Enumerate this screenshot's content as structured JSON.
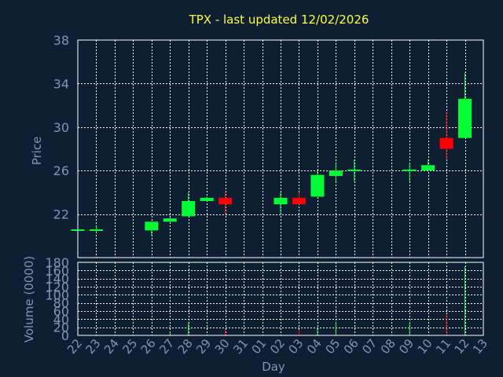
{
  "chart_data": [
    {
      "type": "candlestick",
      "title": "TPX - last updated 12/02/2026",
      "ylabel": "Price",
      "ylim": [
        18,
        38
      ],
      "yticks": [
        "22",
        "26",
        "30",
        "34",
        "38"
      ],
      "grid": true,
      "up_color": "#00ff33",
      "down_color": "#ff0000",
      "candles": [
        {
          "day": "22",
          "open": 20.5,
          "high": 20.6,
          "low": 20.5,
          "close": 20.6
        },
        {
          "day": "23",
          "open": 20.5,
          "high": 20.9,
          "low": 20.3,
          "close": 20.6
        },
        {
          "day": "26",
          "open": 20.5,
          "high": 21.3,
          "low": 20.0,
          "close": 21.3
        },
        {
          "day": "27",
          "open": 21.3,
          "high": 21.7,
          "low": 21.3,
          "close": 21.6
        },
        {
          "day": "28",
          "open": 21.8,
          "high": 24.0,
          "low": 21.8,
          "close": 23.2
        },
        {
          "day": "29",
          "open": 23.2,
          "high": 23.6,
          "low": 23.2,
          "close": 23.5
        },
        {
          "day": "30",
          "open": 23.5,
          "high": 24.0,
          "low": 22.0,
          "close": 22.9
        },
        {
          "day": "02",
          "open": 22.9,
          "high": 24.0,
          "low": 22.0,
          "close": 23.5
        },
        {
          "day": "03",
          "open": 23.5,
          "high": 24.0,
          "low": 22.9,
          "close": 22.9
        },
        {
          "day": "04",
          "open": 23.6,
          "high": 26.0,
          "low": 23.6,
          "close": 25.6
        },
        {
          "day": "05",
          "open": 25.5,
          "high": 26.8,
          "low": 25.0,
          "close": 26.0
        },
        {
          "day": "06",
          "open": 26.0,
          "high": 27.0,
          "low": 25.0,
          "close": 26.1
        },
        {
          "day": "09",
          "open": 26.0,
          "high": 26.7,
          "low": 25.0,
          "close": 26.1
        },
        {
          "day": "10",
          "open": 26.0,
          "high": 27.0,
          "low": 26.0,
          "close": 26.5
        },
        {
          "day": "11",
          "open": 29.0,
          "high": 31.4,
          "low": 27.0,
          "close": 28.0
        },
        {
          "day": "12",
          "open": 29.0,
          "high": 35.0,
          "low": 29.0,
          "close": 32.6
        }
      ]
    },
    {
      "type": "bar",
      "xlabel": "Day",
      "ylabel": "Volume (0000)",
      "ylim": [
        0,
        180
      ],
      "yticks": [
        "0",
        "20",
        "40",
        "60",
        "80",
        "100",
        "120",
        "140",
        "160",
        "180"
      ],
      "categories": [
        "22",
        "23",
        "24",
        "25",
        "26",
        "27",
        "28",
        "29",
        "30",
        "31",
        "01",
        "02",
        "03",
        "04",
        "05",
        "06",
        "07",
        "08",
        "09",
        "10",
        "11",
        "12",
        "13"
      ],
      "bars": [
        {
          "day": "27",
          "value": 8,
          "color": "#00ff33"
        },
        {
          "day": "28",
          "value": 32,
          "color": "#00ff33"
        },
        {
          "day": "30",
          "value": 14,
          "color": "#ff0000"
        },
        {
          "day": "03",
          "value": 13,
          "color": "#ff0000"
        },
        {
          "day": "04",
          "value": 17,
          "color": "#00ff33"
        },
        {
          "day": "05",
          "value": 32,
          "color": "#00ff33"
        },
        {
          "day": "09",
          "value": 32,
          "color": "#00ff33"
        },
        {
          "day": "11",
          "value": 52,
          "color": "#ff0000"
        },
        {
          "day": "12",
          "value": 170,
          "color": "#00ff33"
        }
      ]
    }
  ]
}
